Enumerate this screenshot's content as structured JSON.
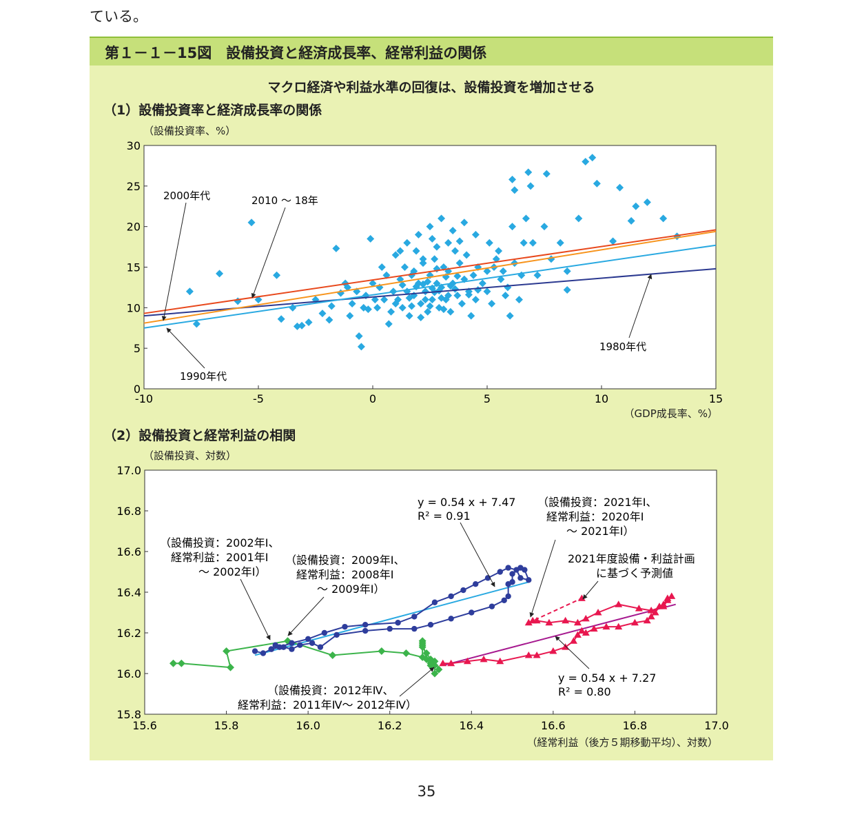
{
  "page": {
    "top_text": "ている。",
    "page_number": "35"
  },
  "figure": {
    "title": "第１－１－15図　設備投資と経済成長率、経常利益の関係",
    "subtitle": "マクロ経済や利益水準の回復は、設備投資を増加させる"
  },
  "chart_data": [
    {
      "type": "scatter",
      "title": "（1）設備投資率と経済成長率の関係",
      "ylabel": "（設備投資率、%）",
      "xlabel": "（GDP成長率、%）",
      "xlim": [
        -10,
        15
      ],
      "ylim": [
        0,
        30
      ],
      "xticks": [
        "-10",
        "-5",
        "0",
        "5",
        "10",
        "15"
      ],
      "yticks": [
        "0",
        "5",
        "10",
        "15",
        "20",
        "25",
        "30"
      ],
      "grid": false,
      "colors": {
        "points": "#29a9e1",
        "l1980": "#2b3990",
        "l1990": "#29a9e1",
        "l2000": "#f7941d",
        "l2010": "#e8491d"
      },
      "points": [
        [
          -8,
          12
        ],
        [
          -7.7,
          8
        ],
        [
          -6.7,
          14.2
        ],
        [
          -5.9,
          10.8
        ],
        [
          -5.3,
          20.5
        ],
        [
          -5,
          11
        ],
        [
          -4.2,
          14
        ],
        [
          -4,
          8.6
        ],
        [
          -3.5,
          10
        ],
        [
          -3.3,
          7.7
        ],
        [
          -3.1,
          7.8
        ],
        [
          -2.8,
          8.2
        ],
        [
          -2.5,
          11
        ],
        [
          -2.2,
          9.3
        ],
        [
          -1.9,
          8.5
        ],
        [
          -1.8,
          10.2
        ],
        [
          -1.6,
          17.3
        ],
        [
          -1.4,
          11.8
        ],
        [
          -1.2,
          13
        ],
        [
          -1,
          9
        ],
        [
          -0.9,
          10.5
        ],
        [
          -0.7,
          12
        ],
        [
          -0.6,
          6.5
        ],
        [
          -0.5,
          5.2
        ],
        [
          -0.3,
          11.5
        ],
        [
          -0.2,
          9.8
        ],
        [
          -0.1,
          18.5
        ],
        [
          0,
          13
        ],
        [
          0.2,
          10
        ],
        [
          0.3,
          12.5
        ],
        [
          0.5,
          11
        ],
        [
          0.6,
          14
        ],
        [
          0.8,
          9.5
        ],
        [
          0.9,
          12
        ],
        [
          1,
          16.5
        ],
        [
          1.1,
          11
        ],
        [
          1.2,
          13.5
        ],
        [
          1.3,
          10
        ],
        [
          1.4,
          15
        ],
        [
          1.5,
          12
        ],
        [
          1.6,
          9
        ],
        [
          1.7,
          14
        ],
        [
          1.8,
          11.5
        ],
        [
          1.9,
          17
        ],
        [
          2,
          13
        ],
        [
          2.1,
          10.5
        ],
        [
          2.2,
          15.5
        ],
        [
          2.3,
          12
        ],
        [
          2.4,
          9.5
        ],
        [
          2.5,
          14
        ],
        [
          2.6,
          11
        ],
        [
          2.7,
          16
        ],
        [
          2.8,
          13
        ],
        [
          2.9,
          10
        ],
        [
          3,
          12.5
        ],
        [
          3.1,
          15
        ],
        [
          3.2,
          11
        ],
        [
          3.3,
          14.5
        ],
        [
          3.4,
          9.5
        ],
        [
          3.5,
          13
        ],
        [
          3.6,
          17
        ],
        [
          3.7,
          11.5
        ],
        [
          3.8,
          15.5
        ],
        [
          3.9,
          10.5
        ],
        [
          4,
          13.5
        ],
        [
          4.1,
          16.5
        ],
        [
          4.2,
          12
        ],
        [
          4.3,
          9
        ],
        [
          4.4,
          14
        ],
        [
          4.5,
          11
        ],
        [
          4.6,
          15
        ],
        [
          4.8,
          13
        ],
        [
          5,
          12
        ],
        [
          5.2,
          10.5
        ],
        [
          5.4,
          16
        ],
        [
          5.6,
          13.5
        ],
        [
          5.8,
          11.5
        ],
        [
          6,
          9
        ],
        [
          1.5,
          18
        ],
        [
          2,
          19
        ],
        [
          2.5,
          20
        ],
        [
          3,
          21
        ],
        [
          3.5,
          19.5
        ],
        [
          4,
          20.5
        ],
        [
          2.2,
          16
        ],
        [
          2.8,
          17.5
        ],
        [
          3.3,
          18
        ],
        [
          1.8,
          14.5
        ],
        [
          2.6,
          18.5
        ],
        [
          3.8,
          18.2
        ],
        [
          1.2,
          17
        ],
        [
          4.5,
          19
        ],
        [
          5.1,
          18
        ],
        [
          5.3,
          15
        ],
        [
          5.5,
          17
        ],
        [
          5.7,
          14.5
        ],
        [
          5.9,
          12.5
        ],
        [
          6.1,
          20
        ],
        [
          6.2,
          15.5
        ],
        [
          6.4,
          11
        ],
        [
          6.5,
          14
        ],
        [
          6.6,
          18
        ],
        [
          6.7,
          21
        ],
        [
          6.1,
          25.8
        ],
        [
          6.2,
          24.5
        ],
        [
          6.8,
          26.7
        ],
        [
          6.9,
          25
        ],
        [
          7,
          18
        ],
        [
          7.2,
          14
        ],
        [
          7.5,
          20
        ],
        [
          7.6,
          26.5
        ],
        [
          7.8,
          16
        ],
        [
          8.2,
          18
        ],
        [
          8.5,
          14.5
        ],
        [
          8.5,
          12.2
        ],
        [
          9,
          21
        ],
        [
          9.3,
          28
        ],
        [
          9.6,
          28.5
        ],
        [
          9.8,
          25.3
        ],
        [
          10.5,
          18.2
        ],
        [
          10.8,
          24.8
        ],
        [
          11.3,
          20.7
        ],
        [
          11.5,
          22.5
        ],
        [
          12,
          23
        ],
        [
          12.7,
          21
        ],
        [
          13.3,
          18.8
        ],
        [
          0.4,
          15
        ],
        [
          0.7,
          8
        ],
        [
          1,
          10.5
        ],
        [
          1.3,
          12.8
        ],
        [
          1.6,
          11.2
        ],
        [
          2.1,
          8.8
        ],
        [
          2.4,
          13.2
        ],
        [
          2.9,
          12.1
        ],
        [
          3.2,
          13.8
        ],
        [
          3.6,
          12.3
        ],
        [
          4.2,
          11.6
        ],
        [
          1.9,
          12.6
        ],
        [
          2.7,
          11.9
        ],
        [
          3.1,
          9.8
        ],
        [
          0.1,
          11
        ],
        [
          -0.4,
          10
        ],
        [
          -1.1,
          12.5
        ],
        [
          2.3,
          11
        ],
        [
          2.5,
          10.2
        ],
        [
          2.8,
          14.8
        ],
        [
          3,
          11.2
        ],
        [
          3.4,
          12.7
        ],
        [
          3.7,
          13.9
        ],
        [
          4.6,
          12.2
        ],
        [
          5,
          14.5
        ],
        [
          1.7,
          10.2
        ],
        [
          2.2,
          12.9
        ],
        [
          2.6,
          12.4
        ],
        [
          3.3,
          11.5
        ]
      ],
      "lines": [
        {
          "name": "1980年代",
          "x": [
            -10,
            15
          ],
          "y": [
            9.0,
            14.8
          ]
        },
        {
          "name": "1990年代",
          "x": [
            -10,
            15
          ],
          "y": [
            7.5,
            17.7
          ]
        },
        {
          "name": "2000年代",
          "x": [
            -10,
            15
          ],
          "y": [
            8.1,
            19.4
          ]
        },
        {
          "name": "2010 ～ 18年",
          "x": [
            -10,
            15
          ],
          "y": [
            9.3,
            19.6
          ]
        }
      ],
      "annotations": {
        "a2000": "2000年代",
        "a2010": "2010 ～ 18年",
        "a1990": "1990年代",
        "a1980": "1980年代"
      }
    },
    {
      "type": "line",
      "title": "（2）設備投資と経常利益の相関",
      "ylabel": "（設備投資、対数）",
      "xlabel": "（経常利益（後方５期移動平均）、対数）",
      "xlim": [
        15.6,
        17.0
      ],
      "ylim": [
        15.8,
        17.0
      ],
      "xticks": [
        "15.6",
        "15.8",
        "16.0",
        "16.2",
        "16.4",
        "16.6",
        "16.8",
        "17.0"
      ],
      "yticks": [
        "15.8",
        "16.0",
        "16.2",
        "16.4",
        "16.6",
        "16.8",
        "17.0"
      ],
      "colors": {
        "green": "#3cb44b",
        "blue": "#2e3d9c",
        "red": "#e8174f",
        "fit_blue": "#29a9e1",
        "fit_red": "#a6198f"
      },
      "series": [
        {
          "x": [
            15.67,
            15.69,
            15.81,
            15.8,
            15.95,
            16.06,
            16.18,
            16.24,
            16.28,
            16.28,
            16.28,
            16.29,
            16.3,
            16.3,
            16.31,
            16.31,
            16.32,
            16.31,
            16.3,
            16.29,
            16.28,
            16.28
          ],
          "y": [
            16.05,
            16.05,
            16.03,
            16.11,
            16.16,
            16.09,
            16.11,
            16.1,
            16.08,
            16.15,
            16.16,
            16.07,
            16.04,
            16.05,
            16.04,
            16.0,
            16.02,
            16.06,
            16.07,
            16.1,
            16.13,
            16.14
          ]
        },
        {
          "x": [
            15.87,
            15.89,
            15.91,
            15.92,
            15.94,
            15.96,
            15.98,
            16.01,
            16.03,
            16.07,
            16.14,
            16.2,
            16.26,
            16.3,
            16.35,
            16.4,
            16.45,
            16.48,
            16.49,
            16.49,
            16.5,
            16.5,
            16.52,
            16.53,
            16.54,
            16.52,
            16.51,
            16.49,
            16.47,
            16.44,
            16.41,
            16.38,
            16.35,
            16.31,
            16.26,
            16.22,
            16.14,
            16.09,
            16.04,
            16.0,
            15.96,
            15.93,
            15.91
          ],
          "y": [
            16.11,
            16.1,
            16.12,
            16.14,
            16.13,
            16.12,
            16.14,
            16.15,
            16.13,
            16.19,
            16.21,
            16.22,
            16.22,
            16.24,
            16.27,
            16.3,
            16.33,
            16.36,
            16.38,
            16.44,
            16.45,
            16.49,
            16.52,
            16.51,
            16.46,
            16.47,
            16.51,
            16.52,
            16.5,
            16.47,
            16.44,
            16.41,
            16.38,
            16.35,
            16.28,
            16.25,
            16.24,
            16.23,
            16.2,
            16.17,
            16.15,
            16.13,
            16.12
          ]
        },
        {
          "x": [
            16.33,
            16.35,
            16.39,
            16.43,
            16.47,
            16.54,
            16.56,
            16.6,
            16.63,
            16.65,
            16.66,
            16.67,
            16.68,
            16.7,
            16.73,
            16.76,
            16.8,
            16.83,
            16.84,
            16.85,
            16.86,
            16.87,
            16.88,
            16.89,
            16.88,
            16.87,
            16.84,
            16.81,
            16.76,
            16.71,
            16.68,
            16.66,
            16.63,
            16.59,
            16.56,
            16.54,
            16.55
          ],
          "y": [
            16.05,
            16.05,
            16.06,
            16.07,
            16.06,
            16.09,
            16.09,
            16.11,
            16.13,
            16.16,
            16.19,
            16.21,
            16.2,
            16.22,
            16.23,
            16.23,
            16.25,
            16.26,
            16.28,
            16.3,
            16.33,
            16.34,
            16.37,
            16.38,
            16.36,
            16.33,
            16.31,
            16.32,
            16.34,
            16.3,
            16.27,
            16.25,
            16.26,
            16.25,
            16.26,
            16.25,
            16.26
          ]
        }
      ],
      "forecast": {
        "x": [
          16.54,
          16.67
        ],
        "y": [
          16.25,
          16.37
        ]
      },
      "fits": [
        {
          "x": [
            15.87,
            16.54
          ],
          "y": [
            16.09,
            16.45
          ]
        },
        {
          "x": [
            16.33,
            16.9
          ],
          "y": [
            16.04,
            16.34
          ]
        }
      ],
      "annotations": {
        "eq_blue_1": "y = 0.54 x + 7.47",
        "eq_blue_2": "R² = 0.91",
        "eq_red_1": "y = 0.54 x + 7.27",
        "eq_red_2": "R² = 0.80",
        "n2002_1": "（設備投資：2002年Ⅰ、",
        "n2002_2": "経常利益：2001年Ⅰ",
        "n2002_3": "～ 2002年Ⅰ）",
        "n2009_1": "（設備投資：2009年Ⅰ、",
        "n2009_2": "経常利益：2008年Ⅰ",
        "n2009_3": "～ 2009年Ⅰ）",
        "n2021_1": "（設備投資：2021年Ⅰ、",
        "n2021_2": "経常利益：2020年Ⅰ",
        "n2021_3": "～ 2021年Ⅰ）",
        "nplan_1": "2021年度設備・利益計画",
        "nplan_2": "に基づく予測値",
        "n2012_1": "（設備投資：2012年Ⅳ、",
        "n2012_2": "経常利益：2011年Ⅳ～ 2012年Ⅳ）"
      }
    }
  ]
}
